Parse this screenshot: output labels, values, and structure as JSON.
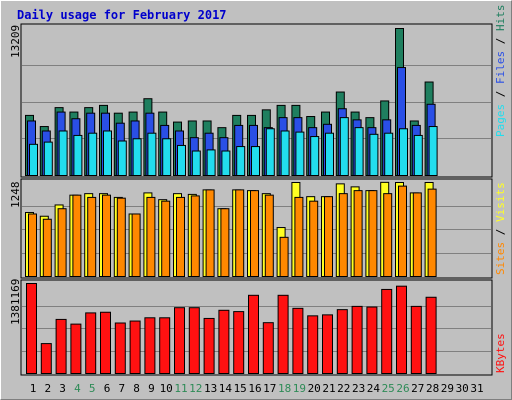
{
  "title": "Daily usage for February 2017",
  "colors": {
    "title": "#0000cc",
    "hits": "#1f7f5f",
    "files": "#2a4fe6",
    "pages": "#22ddee",
    "visits": "#ffff22",
    "sites": "#ff8800",
    "kbytes": "#ff1111",
    "weekend_label": "#2e8b57",
    "plot_bg": "#c0c0c0",
    "grid": "#808080"
  },
  "labels": {
    "top_max": "13209",
    "mid_max": "1248",
    "bottom_max": "1381169",
    "top_pages": "Pages",
    "top_sep1": " / ",
    "top_files": "Files",
    "top_sep2": " / ",
    "top_hits": "Hits",
    "mid_sites": "Sites",
    "mid_sep": " / ",
    "mid_visits": "Visits",
    "bottom_kbytes": "KBytes"
  },
  "chart_data": {
    "type": "bar",
    "title": "Daily usage for February 2017",
    "categories": [
      "1",
      "2",
      "3",
      "4",
      "5",
      "6",
      "7",
      "8",
      "9",
      "10",
      "11",
      "12",
      "13",
      "14",
      "15",
      "16",
      "17",
      "18",
      "19",
      "20",
      "21",
      "22",
      "23",
      "24",
      "25",
      "26",
      "27",
      "28",
      "29",
      "30",
      "31"
    ],
    "weekend_days": [
      4,
      5,
      11,
      12,
      18,
      19,
      25,
      26
    ],
    "panels": [
      {
        "name": "top",
        "ymax": 13209,
        "series": [
          {
            "name": "Hits",
            "values": [
              5400,
              4400,
              6100,
              5700,
              6100,
              6300,
              5600,
              5700,
              6900,
              5700,
              4800,
              4900,
              4900,
              4300,
              5400,
              5400,
              5900,
              6300,
              6300,
              5300,
              5700,
              7500,
              5700,
              5200,
              6700,
              13209,
              4900,
              8400,
              0,
              0,
              0
            ]
          },
          {
            "name": "Files",
            "values": [
              4900,
              4000,
              5700,
              5100,
              5600,
              5600,
              4700,
              4900,
              5600,
              4500,
              4000,
              3400,
              3800,
              3400,
              4500,
              4500,
              4300,
              5200,
              5200,
              4300,
              4600,
              6000,
              5000,
              4300,
              5000,
              9700,
              4500,
              6400,
              0,
              0,
              0
            ]
          },
          {
            "name": "Pages",
            "values": [
              2800,
              3000,
              4000,
              3600,
              3800,
              4000,
              3100,
              3300,
              3800,
              3300,
              2700,
              2200,
              2300,
              2200,
              2600,
              2600,
              4200,
              4000,
              3900,
              3500,
              3800,
              5200,
              4300,
              3700,
              3800,
              4200,
              3600,
              4400,
              0,
              0,
              0
            ]
          }
        ]
      },
      {
        "name": "middle",
        "ymax": 1248,
        "series": [
          {
            "name": "Visits",
            "values": [
              850,
              800,
              950,
              1080,
              1100,
              1100,
              1050,
              830,
              1110,
              1020,
              1100,
              1090,
              1150,
              900,
              1150,
              1140,
              1100,
              650,
              1248,
              1060,
              1060,
              1230,
              1190,
              1140,
              1250,
              1248,
              1110,
              1248,
              0,
              0,
              0
            ]
          },
          {
            "name": "Sites",
            "values": [
              830,
              760,
              900,
              1080,
              1050,
              1080,
              1040,
              830,
              1050,
              1000,
              1050,
              1070,
              1150,
              900,
              1150,
              1140,
              1080,
              520,
              1050,
              1000,
              1060,
              1100,
              1140,
              1140,
              1100,
              1200,
              1110,
              1160,
              0,
              0,
              0
            ]
          }
        ]
      },
      {
        "name": "bottom",
        "ymax": 1381169,
        "series": [
          {
            "name": "KBytes",
            "values": [
              1381169,
              459000,
              830000,
              758000,
              930000,
              940000,
              775000,
              805000,
              855000,
              855000,
              1010000,
              1010000,
              845000,
              970000,
              950000,
              1200000,
              780000,
              1200000,
              1000000,
              885000,
              900000,
              980000,
              1030000,
              1020000,
              1290000,
              1340000,
              1030000,
              1170000,
              0,
              0,
              0
            ]
          }
        ]
      }
    ]
  }
}
